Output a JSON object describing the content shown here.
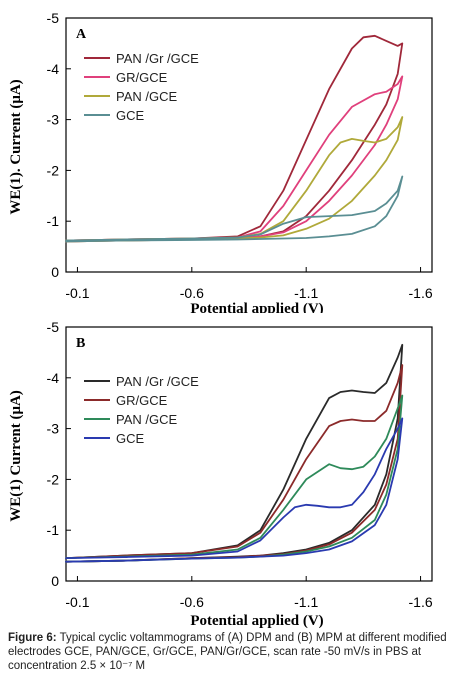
{
  "chart_data": [
    {
      "type": "line",
      "panel_label": "A",
      "ylabel": "WE(1). Current (μA)",
      "xlabel": "Potential applied (V)",
      "x_ticks": [
        "-0.1",
        "-0.6",
        "-1.1",
        "-1.6"
      ],
      "y_ticks": [
        "-5",
        "-4",
        "-3",
        "-2",
        "-1",
        "0"
      ],
      "xlim": [
        -0.05,
        -1.65
      ],
      "ylim": [
        0,
        -5
      ],
      "legend_position": "top-left",
      "series": [
        {
          "name": "PAN /Gr /GCE",
          "color": "#a0283a",
          "x": [
            -0.05,
            -0.3,
            -0.6,
            -0.8,
            -0.9,
            -1.0,
            -1.1,
            -1.2,
            -1.3,
            -1.35,
            -1.4,
            -1.45,
            -1.5,
            -1.52,
            -1.5,
            -1.45,
            -1.4,
            -1.3,
            -1.2,
            -1.1,
            -1.0,
            -0.9,
            -0.8,
            -0.6,
            -0.3,
            -0.05
          ],
          "y": [
            -0.62,
            -0.64,
            -0.66,
            -0.7,
            -0.9,
            -1.6,
            -2.6,
            -3.6,
            -4.4,
            -4.62,
            -4.65,
            -4.55,
            -4.45,
            -4.5,
            -3.9,
            -3.3,
            -2.9,
            -2.2,
            -1.6,
            -1.1,
            -0.8,
            -0.7,
            -0.66,
            -0.64,
            -0.62,
            -0.6
          ]
        },
        {
          "name": "GR/GCE",
          "color": "#e0407c",
          "x": [
            -0.05,
            -0.3,
            -0.6,
            -0.8,
            -0.9,
            -1.0,
            -1.1,
            -1.2,
            -1.3,
            -1.4,
            -1.45,
            -1.5,
            -1.52,
            -1.5,
            -1.45,
            -1.4,
            -1.3,
            -1.2,
            -1.1,
            -1.0,
            -0.9,
            -0.8,
            -0.6,
            -0.3,
            -0.05
          ],
          "y": [
            -0.62,
            -0.64,
            -0.66,
            -0.68,
            -0.8,
            -1.3,
            -2.0,
            -2.7,
            -3.25,
            -3.5,
            -3.55,
            -3.7,
            -3.85,
            -3.4,
            -2.9,
            -2.5,
            -1.9,
            -1.4,
            -1.0,
            -0.78,
            -0.7,
            -0.67,
            -0.65,
            -0.63,
            -0.6
          ]
        },
        {
          "name": "PAN /GCE",
          "color": "#b0a93a",
          "x": [
            -0.05,
            -0.3,
            -0.6,
            -0.8,
            -0.9,
            -1.0,
            -1.1,
            -1.2,
            -1.25,
            -1.3,
            -1.35,
            -1.4,
            -1.45,
            -1.5,
            -1.52,
            -1.5,
            -1.45,
            -1.4,
            -1.3,
            -1.2,
            -1.1,
            -1.0,
            -0.9,
            -0.8,
            -0.6,
            -0.3,
            -0.05
          ],
          "y": [
            -0.62,
            -0.64,
            -0.66,
            -0.68,
            -0.75,
            -1.0,
            -1.6,
            -2.3,
            -2.55,
            -2.62,
            -2.58,
            -2.55,
            -2.62,
            -2.85,
            -3.05,
            -2.6,
            -2.2,
            -1.9,
            -1.4,
            -1.05,
            -0.85,
            -0.72,
            -0.68,
            -0.66,
            -0.64,
            -0.62,
            -0.6
          ]
        },
        {
          "name": "GCE",
          "color": "#5a8e93",
          "x": [
            -0.05,
            -0.3,
            -0.6,
            -0.8,
            -0.9,
            -1.0,
            -1.1,
            -1.2,
            -1.3,
            -1.4,
            -1.45,
            -1.5,
            -1.52,
            -1.5,
            -1.45,
            -1.4,
            -1.3,
            -1.2,
            -1.1,
            -1.0,
            -0.9,
            -0.8,
            -0.6,
            -0.3,
            -0.05
          ],
          "y": [
            -0.62,
            -0.64,
            -0.66,
            -0.68,
            -0.74,
            -0.95,
            -1.08,
            -1.1,
            -1.12,
            -1.2,
            -1.35,
            -1.6,
            -1.88,
            -1.5,
            -1.1,
            -0.9,
            -0.75,
            -0.7,
            -0.67,
            -0.66,
            -0.65,
            -0.64,
            -0.63,
            -0.62,
            -0.6
          ]
        }
      ]
    },
    {
      "type": "line",
      "panel_label": "B",
      "ylabel": "WE(1) Current (μA)",
      "xlabel": "Potential applied (V)",
      "x_ticks": [
        "-0.1",
        "-0.6",
        "-1.1",
        "-1.6"
      ],
      "y_ticks": [
        "-5",
        "-4",
        "-3",
        "-2",
        "-1",
        "0"
      ],
      "xlim": [
        -0.05,
        -1.65
      ],
      "ylim": [
        0,
        -5
      ],
      "legend_position": "top-left",
      "series": [
        {
          "name": "PAN /Gr /GCE",
          "color": "#2a2a2a",
          "x": [
            -0.05,
            -0.3,
            -0.6,
            -0.8,
            -0.9,
            -1.0,
            -1.1,
            -1.2,
            -1.25,
            -1.3,
            -1.35,
            -1.4,
            -1.45,
            -1.5,
            -1.52,
            -1.5,
            -1.45,
            -1.4,
            -1.3,
            -1.2,
            -1.1,
            -1.0,
            -0.9,
            -0.8,
            -0.6,
            -0.3,
            -0.05
          ],
          "y": [
            -0.45,
            -0.5,
            -0.55,
            -0.7,
            -1.0,
            -1.8,
            -2.8,
            -3.6,
            -3.72,
            -3.75,
            -3.72,
            -3.7,
            -3.9,
            -4.4,
            -4.65,
            -3.2,
            -2.1,
            -1.5,
            -1.0,
            -0.75,
            -0.62,
            -0.55,
            -0.5,
            -0.48,
            -0.45,
            -0.4,
            -0.38
          ]
        },
        {
          "name": "GR/GCE",
          "color": "#8b2a2a",
          "x": [
            -0.05,
            -0.3,
            -0.6,
            -0.8,
            -0.9,
            -1.0,
            -1.1,
            -1.2,
            -1.25,
            -1.3,
            -1.35,
            -1.4,
            -1.45,
            -1.5,
            -1.52,
            -1.5,
            -1.45,
            -1.4,
            -1.3,
            -1.2,
            -1.1,
            -1.0,
            -0.9,
            -0.8,
            -0.6,
            -0.3,
            -0.05
          ],
          "y": [
            -0.45,
            -0.5,
            -0.55,
            -0.68,
            -0.95,
            -1.6,
            -2.4,
            -3.05,
            -3.15,
            -3.18,
            -3.15,
            -3.15,
            -3.35,
            -3.9,
            -4.25,
            -2.8,
            -1.9,
            -1.4,
            -0.95,
            -0.72,
            -0.6,
            -0.53,
            -0.5,
            -0.47,
            -0.45,
            -0.4,
            -0.38
          ]
        },
        {
          "name": "PAN /GCE",
          "color": "#2e8a5a",
          "x": [
            -0.05,
            -0.3,
            -0.6,
            -0.8,
            -0.9,
            -1.0,
            -1.1,
            -1.2,
            -1.25,
            -1.3,
            -1.35,
            -1.4,
            -1.45,
            -1.5,
            -1.52,
            -1.5,
            -1.45,
            -1.4,
            -1.3,
            -1.2,
            -1.1,
            -1.0,
            -0.9,
            -0.8,
            -0.6,
            -0.3,
            -0.05
          ],
          "y": [
            -0.45,
            -0.48,
            -0.52,
            -0.62,
            -0.85,
            -1.4,
            -2.0,
            -2.3,
            -2.22,
            -2.2,
            -2.25,
            -2.45,
            -2.8,
            -3.4,
            -3.65,
            -2.6,
            -1.7,
            -1.2,
            -0.85,
            -0.68,
            -0.58,
            -0.52,
            -0.48,
            -0.46,
            -0.44,
            -0.4,
            -0.38
          ]
        },
        {
          "name": "GCE",
          "color": "#2a3ab0",
          "x": [
            -0.05,
            -0.3,
            -0.6,
            -0.8,
            -0.9,
            -1.0,
            -1.05,
            -1.1,
            -1.15,
            -1.2,
            -1.25,
            -1.3,
            -1.35,
            -1.4,
            -1.45,
            -1.5,
            -1.52,
            -1.5,
            -1.45,
            -1.4,
            -1.3,
            -1.2,
            -1.1,
            -1.0,
            -0.9,
            -0.8,
            -0.6,
            -0.3,
            -0.05
          ],
          "y": [
            -0.45,
            -0.47,
            -0.5,
            -0.58,
            -0.8,
            -1.25,
            -1.45,
            -1.5,
            -1.48,
            -1.45,
            -1.45,
            -1.5,
            -1.75,
            -2.1,
            -2.6,
            -3.0,
            -3.2,
            -2.4,
            -1.5,
            -1.1,
            -0.78,
            -0.62,
            -0.55,
            -0.5,
            -0.48,
            -0.46,
            -0.44,
            -0.4,
            -0.38
          ]
        }
      ]
    }
  ],
  "caption": {
    "label": "Figure 6:",
    "text": "Typical cyclic voltammograms of (A) DPM and (B) MPM at different modified electrodes GCE, PAN/GCE, Gr/GCE, PAN/Gr/GCE, scan rate -50 mV/s in PBS at concentration 2.5 × 10⁻⁷ M"
  }
}
